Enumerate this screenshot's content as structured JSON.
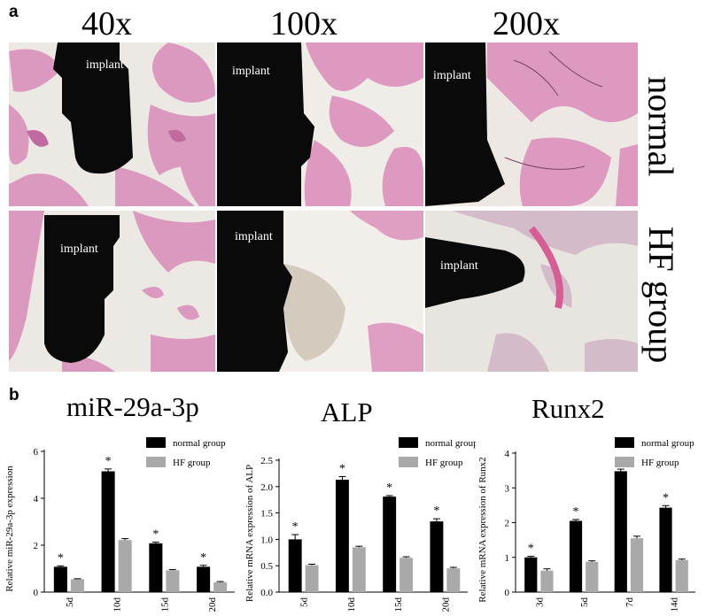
{
  "panel_a": {
    "letter": "a",
    "magnifications": [
      "40x",
      "100x",
      "200x"
    ],
    "rows": [
      {
        "label": "normal",
        "implant_labels": [
          "implant",
          "implant",
          "implant"
        ]
      },
      {
        "label": "HF group",
        "implant_labels": [
          "implant",
          "implant",
          "implant"
        ]
      }
    ],
    "colors": {
      "stain": "#d98bb8",
      "background": "#eeeae6",
      "implant": "#0a0a0a"
    }
  },
  "panel_b": {
    "letter": "b"
  },
  "chart_data": [
    {
      "type": "bar",
      "title": "miR-29a-3p",
      "ylabel": "Relative miR-29a-3p expression",
      "categories": [
        "5d",
        "10d",
        "15d",
        "20d"
      ],
      "ylim": [
        0,
        6
      ],
      "yticks": [
        0,
        2,
        4,
        6
      ],
      "series": [
        {
          "name": "normal group",
          "color": "#000000",
          "values": [
            1.08,
            5.15,
            2.08,
            1.08
          ],
          "errors": [
            0.04,
            0.1,
            0.05,
            0.06
          ],
          "significant": [
            true,
            true,
            true,
            true
          ]
        },
        {
          "name": "HF group",
          "color": "#a9a9a9",
          "values": [
            0.55,
            2.22,
            0.93,
            0.42
          ],
          "errors": [
            0.02,
            0.06,
            0.03,
            0.03
          ],
          "significant": [
            false,
            false,
            false,
            false
          ]
        }
      ],
      "significance_marker": "*",
      "legend": "top-right"
    },
    {
      "type": "bar",
      "title": "ALP",
      "ylabel": "Relative mRNA expression of ALP",
      "categories": [
        "5d",
        "10d",
        "15d",
        "20d"
      ],
      "ylim": [
        0,
        2.5
      ],
      "yticks": [
        0.0,
        0.5,
        1.0,
        1.5,
        2.0,
        2.5
      ],
      "ytick_labels": [
        "0.0",
        "0.5",
        "1.0",
        "1.5",
        "2.0",
        "2.5"
      ],
      "series": [
        {
          "name": "normal group",
          "color": "#000000",
          "values": [
            1.0,
            2.13,
            1.81,
            1.34
          ],
          "errors": [
            0.09,
            0.06,
            0.02,
            0.05
          ],
          "significant": [
            true,
            true,
            true,
            true
          ]
        },
        {
          "name": "HF group",
          "color": "#a9a9a9",
          "values": [
            0.51,
            0.85,
            0.65,
            0.45
          ],
          "errors": [
            0.02,
            0.02,
            0.02,
            0.02
          ],
          "significant": [
            false,
            false,
            false,
            false
          ]
        }
      ],
      "significance_marker": "*",
      "legend": "top-right"
    },
    {
      "type": "bar",
      "title": "Runx2",
      "ylabel": "Relative mRNA expression of Runx2",
      "categories": [
        "3d",
        "5d",
        "7d",
        "14d"
      ],
      "ylim": [
        0,
        4
      ],
      "yticks": [
        0,
        1,
        2,
        3,
        4
      ],
      "series": [
        {
          "name": "normal group",
          "color": "#000000",
          "values": [
            1.0,
            2.05,
            3.48,
            2.43
          ],
          "errors": [
            0.03,
            0.04,
            0.06,
            0.06
          ],
          "significant": [
            true,
            true,
            true,
            true
          ]
        },
        {
          "name": "HF group",
          "color": "#a9a9a9",
          "values": [
            0.62,
            0.87,
            1.55,
            0.92
          ],
          "errors": [
            0.05,
            0.03,
            0.06,
            0.03
          ],
          "significant": [
            false,
            false,
            false,
            false
          ]
        }
      ],
      "significance_marker": "*",
      "legend": "top-right"
    }
  ]
}
